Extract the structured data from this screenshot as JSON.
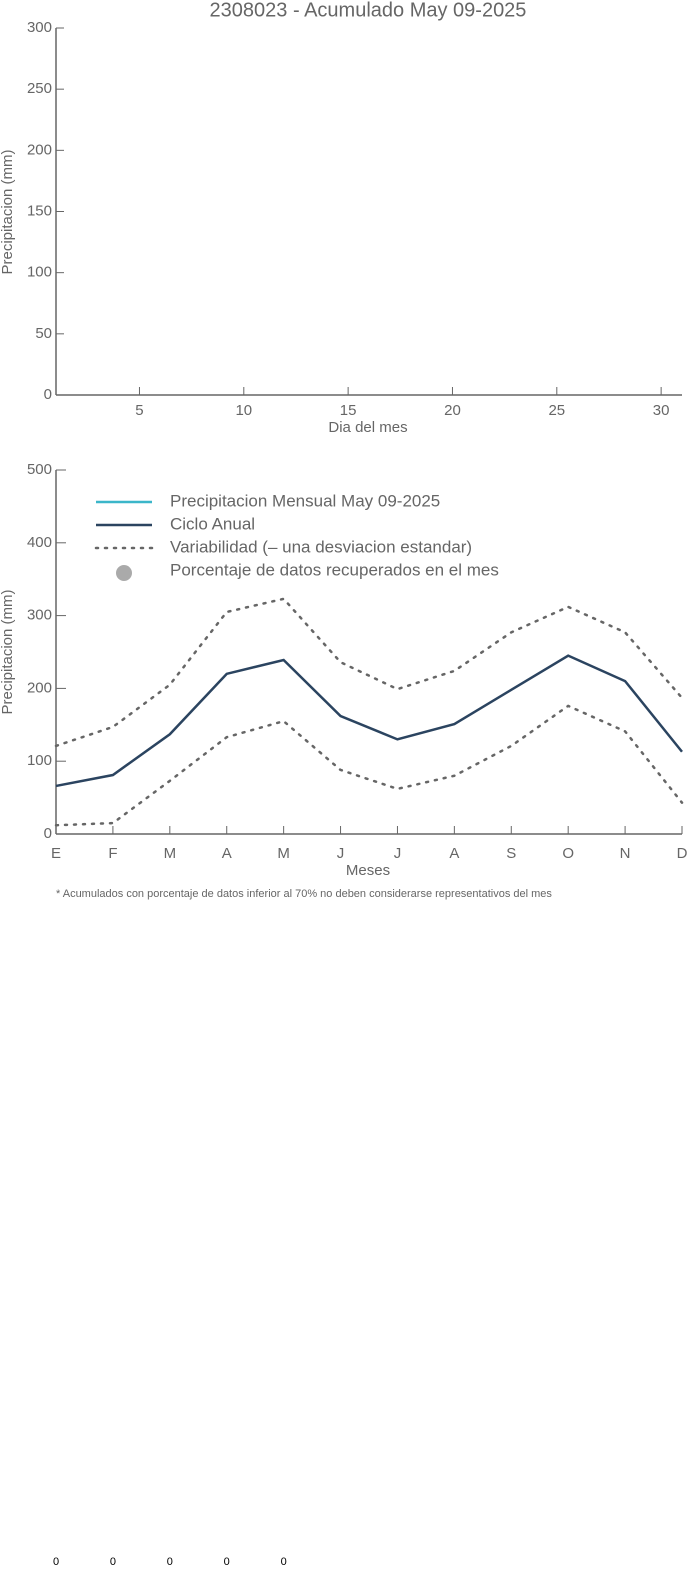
{
  "chart_data": [
    {
      "type": "line",
      "title": "2308023 - Acumulado May 09-2025",
      "x_label": "Dia del mes",
      "y_label": "Precipitacion (mm)",
      "xlim": [
        1,
        31
      ],
      "xticks": [
        5,
        10,
        15,
        20,
        25,
        30
      ],
      "ylim": [
        0,
        300
      ],
      "yticks": [
        0,
        50,
        100,
        150,
        200,
        250,
        300
      ],
      "series": []
    },
    {
      "type": "line",
      "x_label": "Meses",
      "y_label": "Precipitacion (mm)",
      "categories": [
        "E",
        "F",
        "M",
        "A",
        "M",
        "J",
        "J",
        "A",
        "S",
        "O",
        "N",
        "D"
      ],
      "ylim": [
        0,
        500
      ],
      "yticks": [
        0,
        100,
        200,
        300,
        400,
        500
      ],
      "series": [
        {
          "name": "Precipitacion Mensual May 09-2025",
          "color": "#3bb6c9",
          "style": "solid",
          "values": [
            null,
            null,
            null,
            null,
            null,
            null,
            null,
            null,
            null,
            null,
            null,
            null
          ]
        },
        {
          "name": "Ciclo Anual",
          "color": "#2b4460",
          "style": "solid",
          "values": [
            66,
            81,
            137,
            220,
            239,
            162,
            130,
            151,
            198,
            245,
            210,
            113
          ]
        },
        {
          "name": "Variabilidad (– una desviacion estandar)",
          "color": "#666666",
          "style": "dotted",
          "values": [
            121,
            147,
            205,
            305,
            323,
            236,
            199,
            224,
            277,
            312,
            277,
            187
          ],
          "values_low": [
            12,
            15,
            73,
            133,
            155,
            88,
            62,
            80,
            121,
            176,
            141,
            43
          ]
        },
        {
          "name": "Porcentaje de datos recuperados en el mes",
          "color": "#aaaaaa",
          "style": "marker",
          "values": [
            0,
            0,
            0,
            0,
            0,
            null,
            null,
            null,
            null,
            null,
            null,
            null
          ]
        }
      ],
      "note": "* Acumulados con porcentaje de datos inferior al 70% no deben considerarse representativos del mes"
    }
  ]
}
